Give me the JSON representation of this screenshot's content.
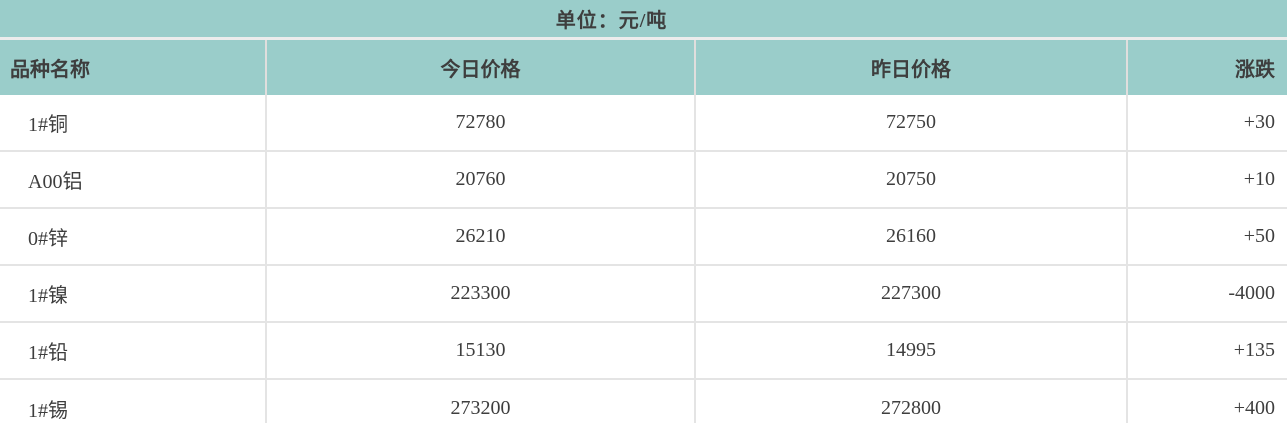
{
  "title": {
    "unit_label": "单位：元/吨"
  },
  "colors": {
    "header_bg": "#9acdca",
    "row_bg": "#ffffff",
    "border_light": "#e4e4e4",
    "text": "#3e3e3e"
  },
  "table": {
    "columns": [
      {
        "key": "name",
        "label": "品种名称",
        "align": "left"
      },
      {
        "key": "today",
        "label": "今日价格",
        "align": "center"
      },
      {
        "key": "yesterday",
        "label": "昨日价格",
        "align": "center"
      },
      {
        "key": "change",
        "label": "涨跌",
        "align": "right"
      }
    ],
    "rows": [
      {
        "name": "1#铜",
        "today": "72780",
        "yesterday": "72750",
        "change": "+30"
      },
      {
        "name": "A00铝",
        "today": "20760",
        "yesterday": "20750",
        "change": "+10"
      },
      {
        "name": "0#锌",
        "today": "26210",
        "yesterday": "26160",
        "change": "+50"
      },
      {
        "name": "1#镍",
        "today": "223300",
        "yesterday": "227300",
        "change": "-4000"
      },
      {
        "name": "1#铅",
        "today": "15130",
        "yesterday": "14995",
        "change": "+135"
      },
      {
        "name": "1#锡",
        "today": "273200",
        "yesterday": "272800",
        "change": "+400"
      }
    ]
  }
}
